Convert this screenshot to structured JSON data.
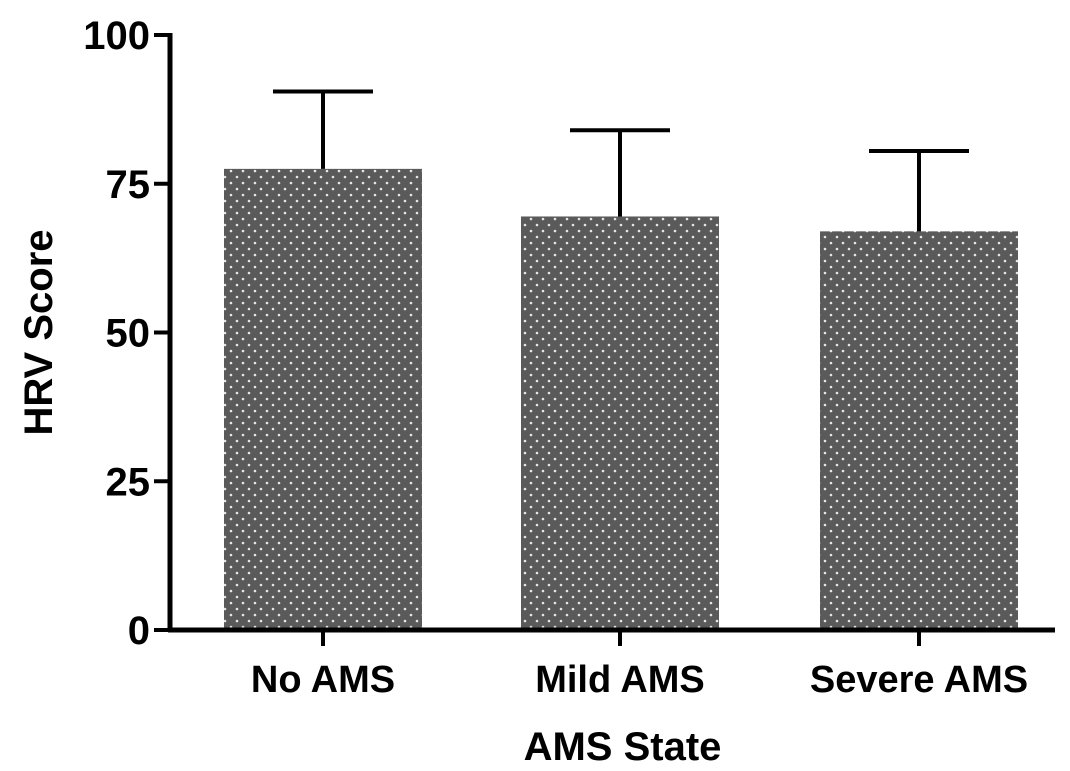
{
  "chart_data": {
    "type": "bar",
    "title": "",
    "xlabel": "AMS State",
    "ylabel": "HRV Score",
    "categories": [
      "No AMS",
      "Mild AMS",
      "Severe AMS"
    ],
    "series": [
      {
        "values": [
          77.5,
          69.5,
          67
        ],
        "error_upper": [
          13,
          14.5,
          13.5
        ]
      }
    ],
    "ylim": [
      0,
      100
    ],
    "yticks": [
      0,
      25,
      50,
      75,
      100
    ],
    "yticks_text": [
      "0",
      "25",
      "50",
      "75",
      "100"
    ],
    "grid": false,
    "legend": "none",
    "bar_color": "#5a5a5a",
    "bar_pattern": "white-dots",
    "error_bar_color": "#000000"
  }
}
